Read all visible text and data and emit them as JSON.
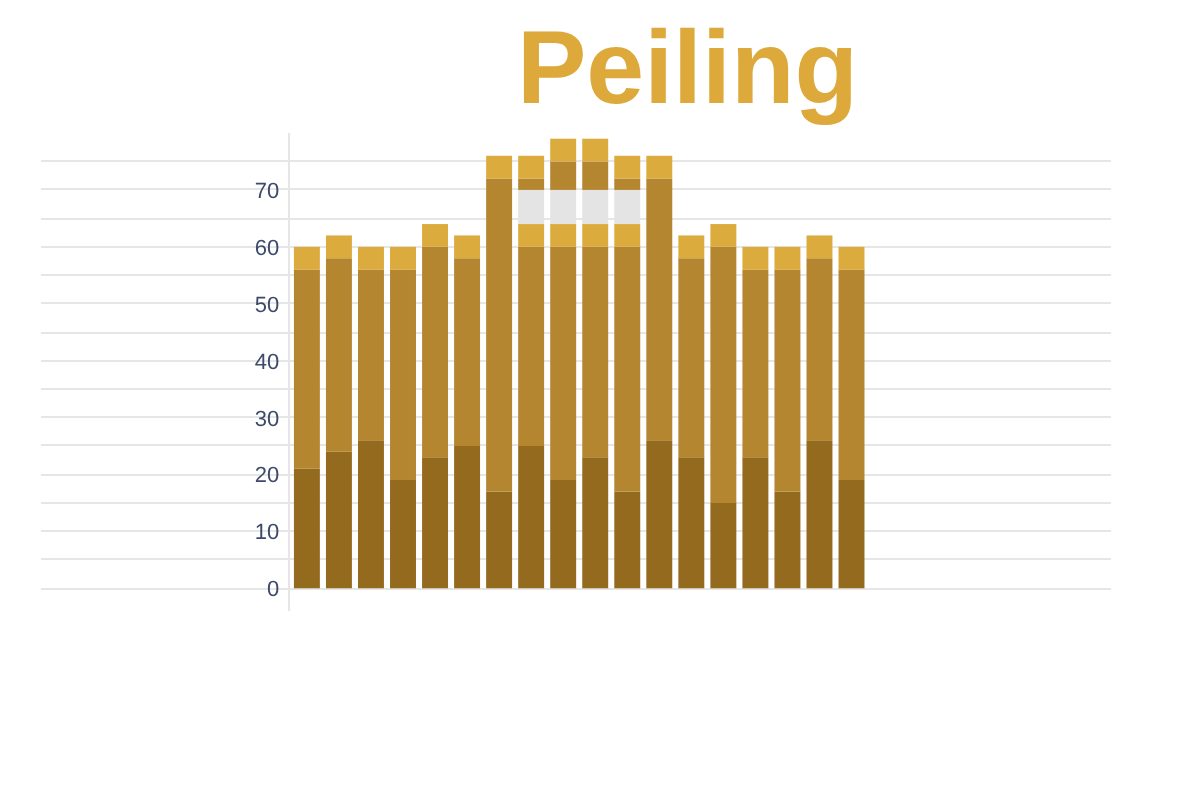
{
  "chart_data": {
    "type": "bar",
    "title": "Peiling",
    "stacked": true,
    "categories": [
      null,
      null,
      null,
      null,
      null,
      null,
      null,
      null,
      null,
      null,
      null,
      null,
      null,
      null,
      null,
      null,
      null,
      null
    ],
    "series": [
      {
        "color": "#946a1e",
        "values": [
          21,
          24,
          26,
          19,
          23,
          25,
          17,
          25,
          19,
          23,
          17,
          26,
          23,
          15,
          23,
          17,
          26,
          19
        ]
      },
      {
        "color": "#b3862f",
        "values": [
          35,
          34,
          30,
          37,
          37,
          33,
          55,
          35,
          41,
          37,
          43,
          46,
          35,
          45,
          33,
          39,
          32,
          37
        ]
      },
      {
        "color": "#dcab3d",
        "values": [
          4,
          4,
          4,
          4,
          4,
          4,
          4,
          4,
          4,
          4,
          4,
          4,
          4,
          4,
          4,
          4,
          4,
          4
        ]
      },
      {
        "color": "#e4e4e4",
        "values": [
          null,
          null,
          null,
          null,
          null,
          null,
          null,
          6,
          6,
          6,
          6,
          null,
          null,
          null,
          null,
          null,
          null,
          null
        ]
      },
      {
        "color": "#b3862f",
        "values": [
          null,
          null,
          null,
          null,
          null,
          null,
          null,
          2,
          5,
          5,
          2,
          null,
          null,
          null,
          null,
          null,
          null,
          null
        ]
      },
      {
        "color": "#dcab3d",
        "values": [
          null,
          null,
          null,
          null,
          null,
          null,
          null,
          4,
          4,
          4,
          4,
          null,
          null,
          null,
          null,
          null,
          null,
          null
        ]
      }
    ],
    "ylim": [
      -4,
      80
    ],
    "yticks": [
      0,
      {
        "value": 5,
        "label": null
      },
      10,
      {
        "value": 15,
        "label": null
      },
      20,
      {
        "value": 25,
        "label": null
      },
      30,
      {
        "value": 35,
        "label": null
      },
      40,
      {
        "value": 45,
        "label": null
      },
      50,
      {
        "value": 55,
        "label": null
      },
      60,
      {
        "value": 65,
        "label": null
      },
      70,
      {
        "value": 75,
        "label": null
      }
    ],
    "grid": "y",
    "tick_labels": "y"
  }
}
